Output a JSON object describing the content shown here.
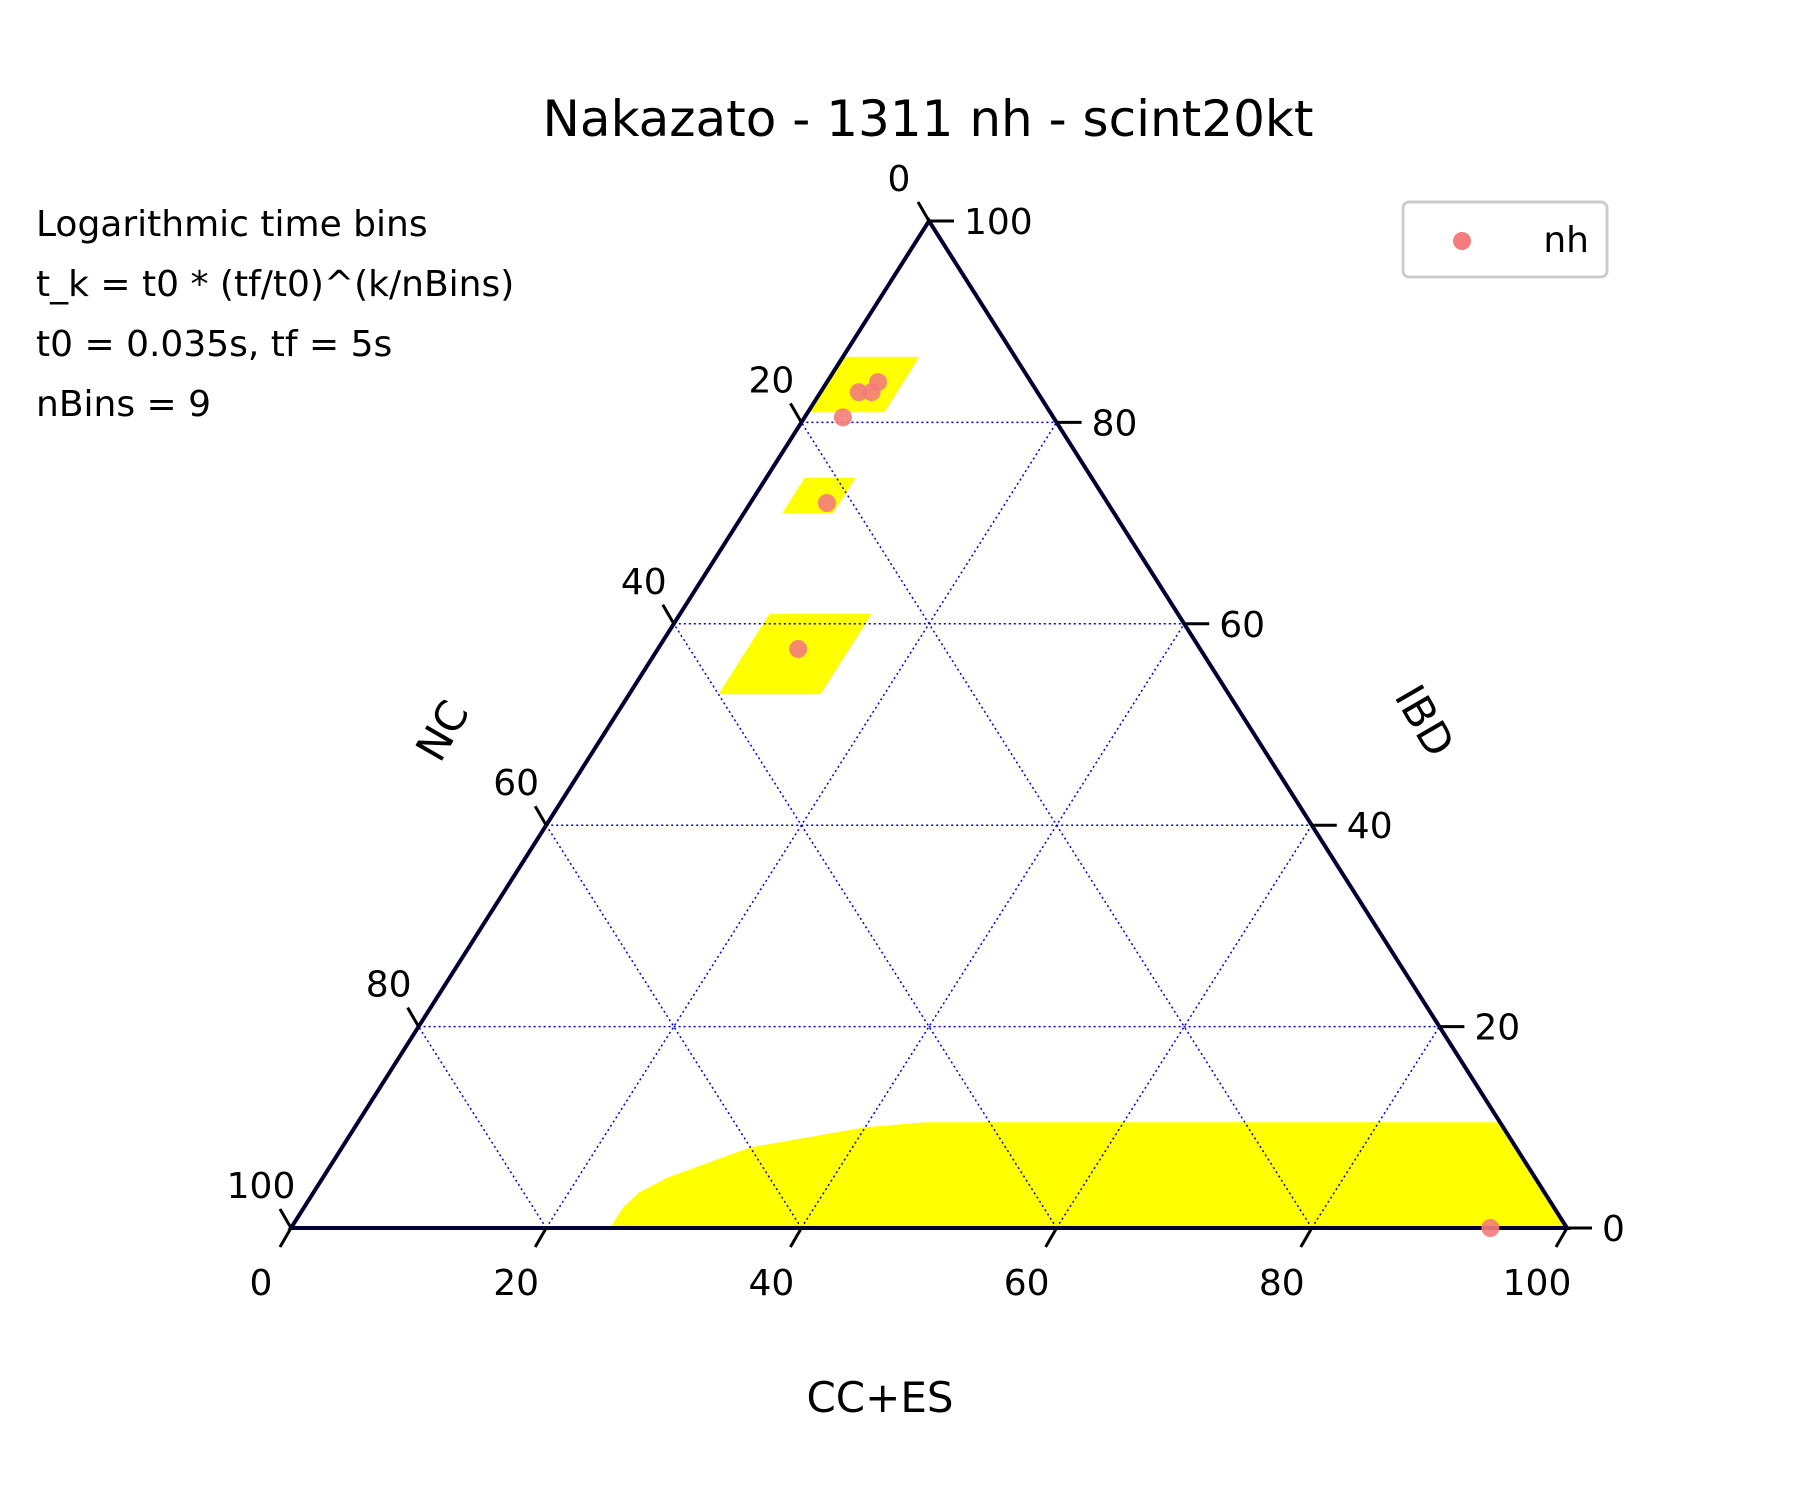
{
  "chart_data": {
    "type": "scatter",
    "subtype": "ternary",
    "title": "Nakazato - 1311 nh - scint20kt",
    "annotation_lines": [
      "Logarithmic time bins",
      "t_k = t0 * (tf/t0)^(k/nBins)",
      "t0 = 0.035s, tf = 5s",
      "nBins = 9"
    ],
    "axes": {
      "bottom": {
        "label": "CC+ES",
        "ticks": [
          "0",
          "20",
          "40",
          "60",
          "80",
          "100"
        ]
      },
      "left": {
        "label": "NC",
        "ticks": [
          "0",
          "20",
          "40",
          "60",
          "80",
          "100"
        ]
      },
      "right": {
        "label": "IBD",
        "ticks": [
          "0",
          "20",
          "40",
          "60",
          "80",
          "100"
        ]
      }
    },
    "range": [
      0,
      100
    ],
    "grid": true,
    "grid_step": 20,
    "grid_color": "#0000cc",
    "frame_color": "#000033",
    "legend": {
      "placement": "top-right",
      "entries": [
        {
          "label": "nh",
          "color": "#f47c7c"
        }
      ]
    },
    "series": [
      {
        "name": "nh",
        "color": "#f47c7c",
        "points": [
          {
            "cc_es": 4,
            "ibd": 84,
            "nc": 12
          },
          {
            "cc_es": 3,
            "ibd": 83,
            "nc": 14
          },
          {
            "cc_es": 4,
            "ibd": 83,
            "nc": 13
          },
          {
            "cc_es": 3,
            "ibd": 80.5,
            "nc": 16.5
          },
          {
            "cc_es": 6,
            "ibd": 72,
            "nc": 22
          },
          {
            "cc_es": 11,
            "ibd": 57.5,
            "nc": 31.5
          },
          {
            "cc_es": 94,
            "ibd": 0,
            "nc": 6
          }
        ]
      }
    ],
    "confidence_regions": {
      "color": "#ffff00",
      "regions": [
        {
          "cc_es": [
            0,
            6
          ],
          "ibd": [
            81,
            86.5
          ]
        },
        {
          "cc_es": [
            3,
            7
          ],
          "ibd": [
            71,
            74.5
          ]
        },
        {
          "cc_es": [
            7,
            15
          ],
          "ibd": [
            53,
            61
          ]
        },
        {
          "ibd_upper_by_nc": [
            [
              75,
              0
            ],
            [
              73,
              2
            ],
            [
              71,
              3.5
            ],
            [
              68,
              5
            ],
            [
              64,
              6.5
            ],
            [
              60,
              8
            ],
            [
              55,
              9
            ],
            [
              50,
              10
            ],
            [
              45,
              10.5
            ],
            [
              35,
              10.5
            ],
            [
              15,
              10.5
            ],
            [
              0,
              10.5
            ]
          ]
        }
      ]
    }
  }
}
